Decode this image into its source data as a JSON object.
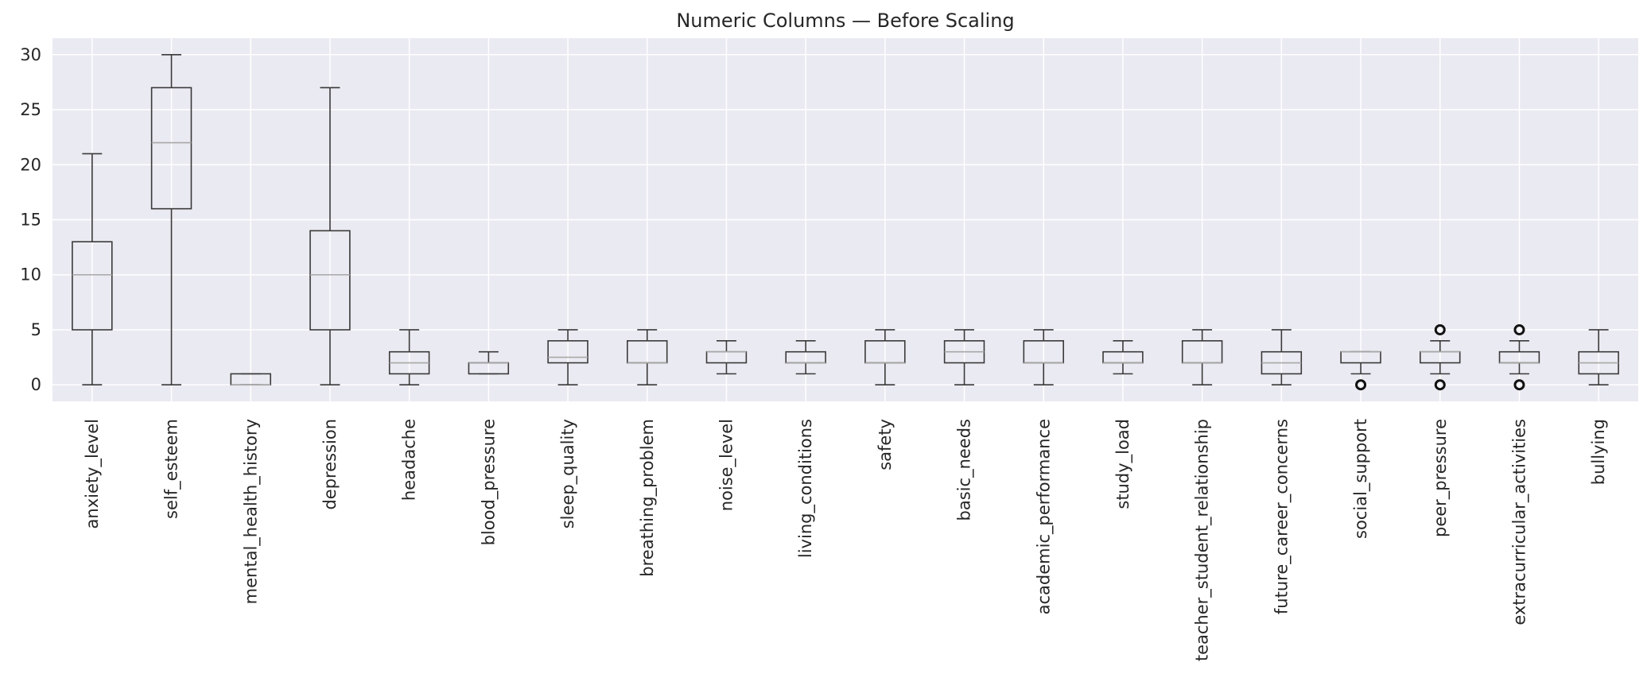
{
  "chart_data": {
    "type": "box",
    "title": "Numeric Columns — Before Scaling",
    "xlabel": "",
    "ylabel": "",
    "ylim": [
      -1.5,
      31.5
    ],
    "yticks": [
      0,
      5,
      10,
      15,
      20,
      25,
      30
    ],
    "grid": true,
    "legend": "none",
    "colors": {
      "background": "#eaeaf2",
      "grid": "#ffffff",
      "box": "#3a3a3a",
      "median": "#a8a8a8",
      "flier": "#111111"
    },
    "categories": [
      "anxiety_level",
      "self_esteem",
      "mental_health_history",
      "depression",
      "headache",
      "blood_pressure",
      "sleep_quality",
      "breathing_problem",
      "noise_level",
      "living_conditions",
      "safety",
      "basic_needs",
      "academic_performance",
      "study_load",
      "teacher_student_relationship",
      "future_career_concerns",
      "social_support",
      "peer_pressure",
      "extracurricular_activities",
      "bullying"
    ],
    "boxes": [
      {
        "min": 0,
        "q1": 5,
        "median": 10,
        "q3": 13,
        "max": 21,
        "fliers": []
      },
      {
        "min": 0,
        "q1": 16,
        "median": 22,
        "q3": 27,
        "max": 30,
        "fliers": []
      },
      {
        "min": 0,
        "q1": 0,
        "median": 0,
        "q3": 1,
        "max": 1,
        "fliers": []
      },
      {
        "min": 0,
        "q1": 5,
        "median": 10,
        "q3": 14,
        "max": 27,
        "fliers": []
      },
      {
        "min": 0,
        "q1": 1,
        "median": 2,
        "q3": 3,
        "max": 5,
        "fliers": []
      },
      {
        "min": 1,
        "q1": 1,
        "median": 2,
        "q3": 2,
        "max": 3,
        "fliers": []
      },
      {
        "min": 0,
        "q1": 2,
        "median": 2.5,
        "q3": 4,
        "max": 5,
        "fliers": []
      },
      {
        "min": 0,
        "q1": 2,
        "median": 2,
        "q3": 4,
        "max": 5,
        "fliers": []
      },
      {
        "min": 1,
        "q1": 2,
        "median": 3,
        "q3": 3,
        "max": 4,
        "fliers": []
      },
      {
        "min": 1,
        "q1": 2,
        "median": 2,
        "q3": 3,
        "max": 4,
        "fliers": []
      },
      {
        "min": 0,
        "q1": 2,
        "median": 2,
        "q3": 4,
        "max": 5,
        "fliers": []
      },
      {
        "min": 0,
        "q1": 2,
        "median": 3,
        "q3": 4,
        "max": 5,
        "fliers": []
      },
      {
        "min": 0,
        "q1": 2,
        "median": 2,
        "q3": 4,
        "max": 5,
        "fliers": []
      },
      {
        "min": 1,
        "q1": 2,
        "median": 2,
        "q3": 3,
        "max": 4,
        "fliers": []
      },
      {
        "min": 0,
        "q1": 2,
        "median": 2,
        "q3": 4,
        "max": 5,
        "fliers": []
      },
      {
        "min": 0,
        "q1": 1,
        "median": 2,
        "q3": 3,
        "max": 5,
        "fliers": []
      },
      {
        "min": 1,
        "q1": 2,
        "median": 3,
        "q3": 3,
        "max": 3,
        "fliers": [
          0
        ]
      },
      {
        "min": 1,
        "q1": 2,
        "median": 3,
        "q3": 3,
        "max": 4,
        "fliers": [
          0,
          5
        ]
      },
      {
        "min": 1,
        "q1": 2,
        "median": 2,
        "q3": 3,
        "max": 4,
        "fliers": [
          0,
          5
        ]
      },
      {
        "min": 0,
        "q1": 1,
        "median": 2,
        "q3": 3,
        "max": 5,
        "fliers": []
      }
    ]
  }
}
